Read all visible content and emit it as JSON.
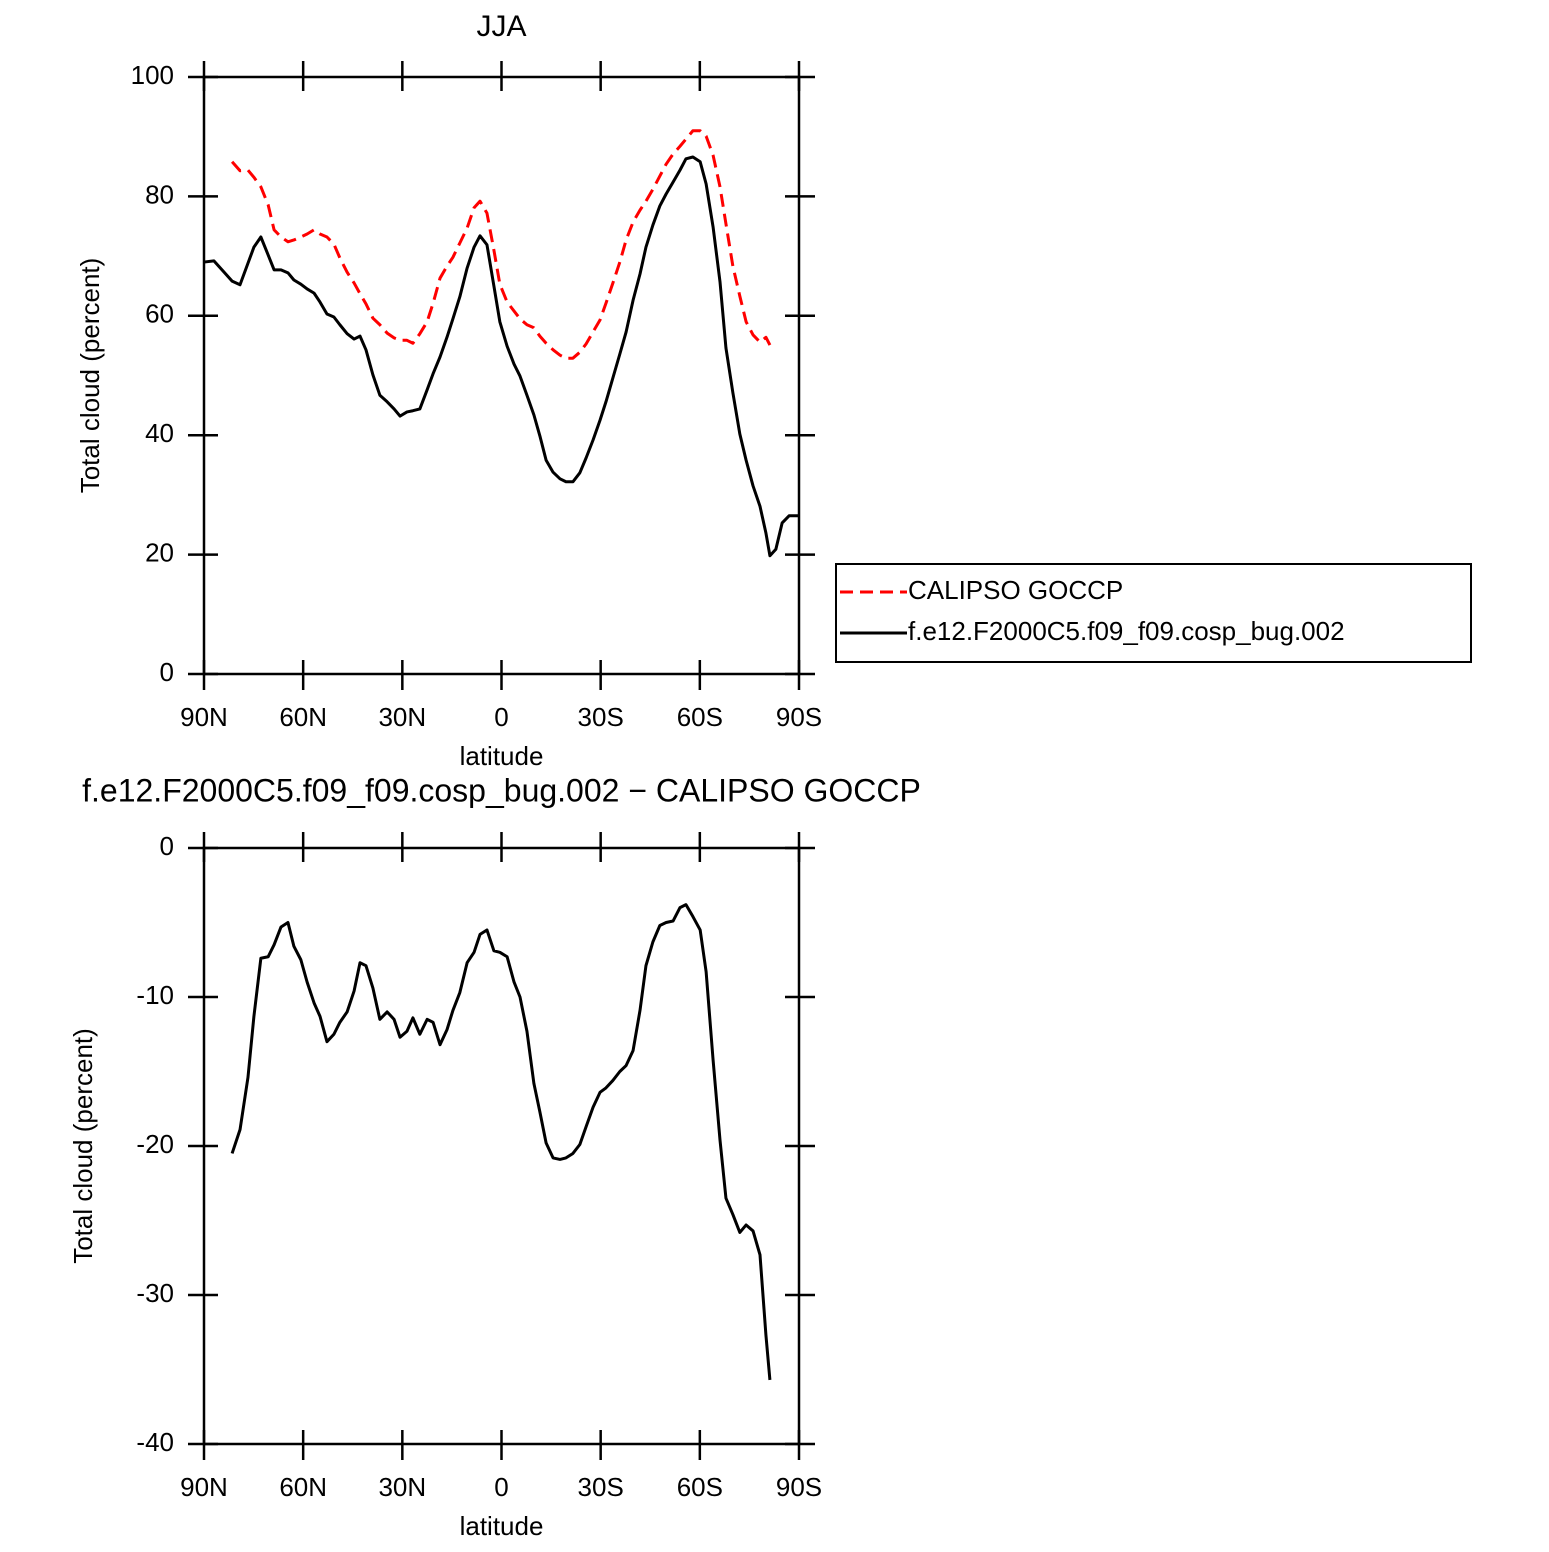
{
  "chart_data": [
    {
      "type": "line",
      "title": "JJA",
      "xlabel": "latitude",
      "ylabel": "Total cloud (percent)",
      "x": [
        90,
        87,
        83.9,
        81.5,
        79.1,
        76.7,
        74.9,
        72.8,
        70.6,
        68.8,
        66.7,
        64.6,
        62.8,
        60.7,
        58.8,
        56.7,
        54.9,
        52.8,
        50.7,
        48.9,
        46.7,
        44.6,
        42.8,
        41,
        38.9,
        36.8,
        34.6,
        32.5,
        30.7,
        28.6,
        26.8,
        24.7,
        22.5,
        20.7,
        18.6,
        16.5,
        14.7,
        12.6,
        10.4,
        8.3,
        6.5,
        4.4,
        2.3,
        0.5,
        -1.7,
        -3.8,
        -5.6,
        -7.7,
        -9.8,
        -11.6,
        -13.5,
        -15.6,
        -17.7,
        -19.5,
        -21.6,
        -23.7,
        -25.6,
        -27.7,
        -29.8,
        -31.6,
        -33.7,
        -35.8,
        -37.7,
        -39.8,
        -41.9,
        -43.7,
        -45.8,
        -47.9,
        -49.8,
        -51.9,
        -54,
        -55.8,
        -57.9,
        -60.1,
        -61.9,
        -64,
        -66.1,
        -67.9,
        -70,
        -72.1,
        -74,
        -76.1,
        -78.2,
        -80,
        -81.2,
        -83,
        -84.9,
        -87,
        -90
      ],
      "xlim": [
        90,
        -90
      ],
      "xticks": [
        {
          "value": 90,
          "label": "90N"
        },
        {
          "value": 60,
          "label": "60N"
        },
        {
          "value": 30,
          "label": "30N"
        },
        0,
        {
          "value": -30,
          "label": "30S"
        },
        {
          "value": -60,
          "label": "60S"
        },
        {
          "value": -90,
          "label": "90S"
        }
      ],
      "ylim": [
        0,
        100
      ],
      "yticks": [
        0,
        20,
        40,
        60,
        80,
        100
      ],
      "legend": "right",
      "series": [
        {
          "name": "CALIPSO GOCCP",
          "color": "#ff0000",
          "line_style": "dashed",
          "values": [
            null,
            null,
            null,
            85.8,
            84.3,
            84.4,
            83.2,
            81.6,
            78.6,
            74.4,
            73.2,
            72.4,
            72.7,
            73.2,
            73.7,
            74.4,
            73.7,
            73.2,
            72,
            69.7,
            67.3,
            65.5,
            63.7,
            62,
            59.6,
            58.5,
            57.1,
            56.3,
            55.9,
            55.9,
            55.4,
            57,
            59,
            62.1,
            66.3,
            68.3,
            69.8,
            72.2,
            74.7,
            78.1,
            79.2,
            77.2,
            71,
            65.3,
            62.3,
            60.8,
            59.5,
            58.5,
            58,
            56.6,
            55.4,
            54.3,
            53.4,
            52.9,
            52.9,
            53.9,
            55.3,
            57.3,
            59.3,
            62.1,
            65.5,
            69,
            72.7,
            75.7,
            77.7,
            79.2,
            81.2,
            83.4,
            85.4,
            87.1,
            88.4,
            89.6,
            91,
            91,
            90.1,
            86.9,
            81.6,
            75.4,
            68.3,
            63.3,
            59,
            56.8,
            55.6,
            56.4,
            55.1,
            null,
            null,
            null,
            null
          ]
        },
        {
          "name": "f.e12.F2000C5.f09_f09.cosp_bug.002",
          "color": "#000000",
          "line_style": "solid",
          "values": [
            69,
            69.2,
            67.3,
            65.8,
            65.2,
            68.8,
            71.5,
            73.2,
            70.2,
            67.7,
            67.7,
            67.2,
            66,
            65.3,
            64.5,
            63.8,
            62.3,
            60.3,
            59.8,
            58.5,
            57,
            56.1,
            56.6,
            54.3,
            50.1,
            46.7,
            45.6,
            44.4,
            43.2,
            43.9,
            44.1,
            44.4,
            47.6,
            50.3,
            53.1,
            56.4,
            59.5,
            63.2,
            68,
            71.5,
            73.4,
            71.9,
            65,
            59,
            54.9,
            51.9,
            49.9,
            46.7,
            43.4,
            39.9,
            35.8,
            33.8,
            32.7,
            32.2,
            32.2,
            33.7,
            36.2,
            39.2,
            42.5,
            45.6,
            49.6,
            53.6,
            57.3,
            62.6,
            67,
            71.5,
            75.2,
            78.4,
            80.4,
            82.4,
            84.4,
            86.3,
            86.6,
            85.8,
            82.1,
            74.9,
            65.7,
            54.6,
            47.1,
            40.2,
            35.8,
            31.5,
            28.1,
            23.6,
            19.8,
            20.9,
            25.3,
            26.5,
            26.5
          ]
        }
      ]
    },
    {
      "type": "line",
      "title": "f.e12.F2000C5.f09_f09.cosp_bug.002 − CALIPSO GOCCP",
      "xlabel": "latitude",
      "ylabel": "Total cloud (percent)",
      "x": [
        90,
        87,
        83.9,
        81.5,
        79.1,
        76.7,
        74.9,
        72.8,
        70.6,
        68.8,
        66.7,
        64.6,
        62.8,
        60.7,
        58.8,
        56.7,
        54.9,
        52.8,
        50.7,
        48.9,
        46.7,
        44.6,
        42.8,
        41,
        38.9,
        36.8,
        34.6,
        32.5,
        30.7,
        28.6,
        26.8,
        24.7,
        22.5,
        20.7,
        18.6,
        16.5,
        14.7,
        12.6,
        10.4,
        8.3,
        6.5,
        4.4,
        2.3,
        0.5,
        -1.7,
        -3.8,
        -5.6,
        -7.7,
        -9.8,
        -11.6,
        -13.5,
        -15.6,
        -17.7,
        -19.5,
        -21.6,
        -23.7,
        -25.6,
        -27.7,
        -29.8,
        -31.6,
        -33.7,
        -35.8,
        -37.7,
        -39.8,
        -41.9,
        -43.7,
        -45.8,
        -47.9,
        -49.8,
        -51.9,
        -54,
        -55.8,
        -57.9,
        -60.1,
        -61.9,
        -64,
        -66.1,
        -67.9,
        -70,
        -72.1,
        -74,
        -76.1,
        -78.2,
        -80,
        -81.2,
        -83,
        -84.9,
        -87,
        -90
      ],
      "xlim": [
        90,
        -90
      ],
      "xticks": [
        {
          "value": 90,
          "label": "90N"
        },
        {
          "value": 60,
          "label": "60N"
        },
        {
          "value": 30,
          "label": "30N"
        },
        0,
        {
          "value": -30,
          "label": "30S"
        },
        {
          "value": -60,
          "label": "60S"
        },
        {
          "value": -90,
          "label": "90S"
        }
      ],
      "ylim": [
        -40,
        0
      ],
      "yticks": [
        -40,
        -30,
        -20,
        -10,
        0
      ],
      "series": [
        {
          "color": "#000000",
          "line_style": "solid",
          "values": [
            null,
            null,
            null,
            -20.5,
            -18.9,
            -15.4,
            -11.3,
            -7.4,
            -7.3,
            -6.5,
            -5.3,
            -5,
            -6.6,
            -7.5,
            -9,
            -10.4,
            -11.3,
            -13,
            -12.5,
            -11.7,
            -11,
            -9.6,
            -7.7,
            -7.9,
            -9.4,
            -11.5,
            -11,
            -11.5,
            -12.7,
            -12.3,
            -11.4,
            -12.5,
            -11.5,
            -11.7,
            -13.2,
            -12.2,
            -10.9,
            -9.7,
            -7.7,
            -7,
            -5.8,
            -5.5,
            -6.9,
            -7,
            -7.3,
            -9,
            -10,
            -12.3,
            -15.8,
            -17.7,
            -19.8,
            -20.8,
            -20.9,
            -20.8,
            -20.5,
            -19.9,
            -18.7,
            -17.4,
            -16.4,
            -16.1,
            -15.6,
            -15,
            -14.6,
            -13.6,
            -10.9,
            -7.9,
            -6.3,
            -5.2,
            -5,
            -4.9,
            -4,
            -3.8,
            -4.6,
            -5.5,
            -8.3,
            -14.2,
            -19.6,
            -23.5,
            -24.6,
            -25.8,
            -25.3,
            -25.7,
            -27.3,
            -32.7,
            -35.7,
            null,
            null,
            null,
            null
          ]
        }
      ]
    }
  ]
}
